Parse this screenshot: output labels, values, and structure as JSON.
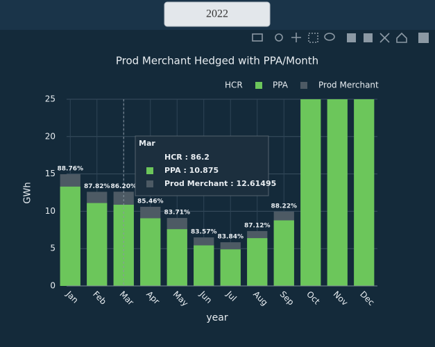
{
  "header": {
    "button": "2022"
  },
  "chart_data": {
    "type": "bar",
    "barmode": "overlay",
    "title": "Prod Merchant Hedged with PPA/Month",
    "xlabel": "year",
    "ylabel": "GWh",
    "categories": [
      "Jan",
      "Feb",
      "Mar",
      "Apr",
      "May",
      "Jun",
      "Jul",
      "Aug",
      "Sep",
      "Oct",
      "Nov",
      "Dec"
    ],
    "series": [
      {
        "name": "HCR",
        "values": [
          88.76,
          87.82,
          86.2,
          85.46,
          83.71,
          83.57,
          83.84,
          87.12,
          88.22,
          null,
          null,
          null
        ],
        "value_labels": [
          "88.76%",
          "87.82%",
          "86.20%",
          "85.46%",
          "83.71%",
          "83.57%",
          "83.84%",
          "87.12%",
          "88.22%",
          null,
          null,
          null
        ]
      },
      {
        "name": "PPA",
        "color": "#6cc65b",
        "values": [
          13.3,
          11.1,
          10.875,
          9.06,
          7.6,
          5.43,
          4.9,
          6.4,
          8.78,
          27,
          27,
          27
        ]
      },
      {
        "name": "Prod Merchant",
        "color": "#4d5a64",
        "values": [
          14.96,
          12.6,
          12.61495,
          10.6,
          9.1,
          6.5,
          5.85,
          7.35,
          9.95,
          null,
          null,
          null
        ]
      }
    ],
    "ylim": [
      0,
      25
    ],
    "yticks": [
      0,
      5,
      10,
      15,
      20,
      25
    ],
    "grid": true,
    "tooltip": {
      "title": "Mar",
      "items": [
        "HCR : 86.2",
        "PPA : 10.875",
        "Prod Merchant : 12.61495"
      ]
    }
  }
}
